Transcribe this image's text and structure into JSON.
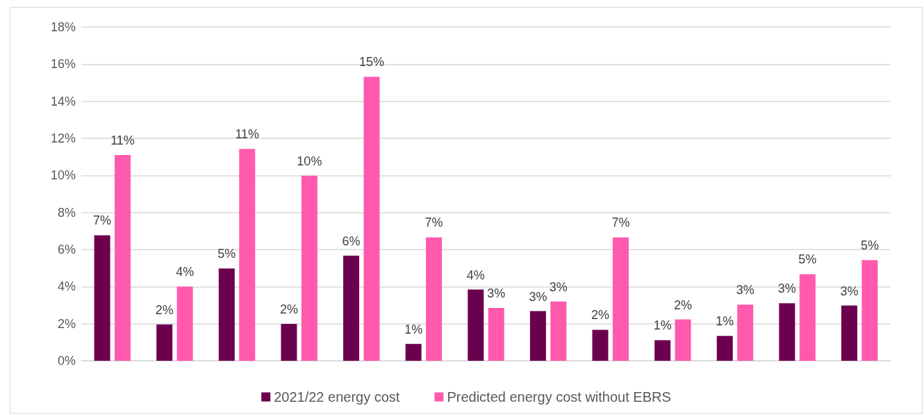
{
  "chart_data": {
    "type": "bar",
    "categories": [
      null,
      null,
      null,
      null,
      null,
      null,
      null,
      null,
      null,
      null,
      null,
      null,
      null
    ],
    "series": [
      {
        "name": "2021/22 energy cost",
        "color": "#6b004f",
        "values": [
          6.77,
          1.96,
          4.98,
          1.99,
          5.67,
          0.91,
          3.84,
          2.68,
          1.67,
          1.11,
          1.34,
          3.1,
          2.98
        ],
        "value_labels": [
          "7%",
          "2%",
          "5%",
          "2%",
          "6%",
          "1%",
          "4%",
          "3%",
          "2%",
          "1%",
          "1%",
          "3%",
          "3%"
        ]
      },
      {
        "name": "Predicted energy cost without EBRS",
        "color": "#ff5aad",
        "values": [
          11.1,
          4.0,
          11.43,
          9.98,
          15.32,
          6.66,
          2.85,
          3.2,
          6.66,
          2.23,
          3.03,
          4.67,
          5.43
        ],
        "value_labels": [
          "11%",
          "4%",
          "11%",
          "10%",
          "15%",
          "7%",
          "3%",
          "3%",
          "7%",
          "2%",
          "3%",
          "5%",
          "5%"
        ]
      }
    ],
    "ylim": [
      0,
      18
    ],
    "yticks": [
      {
        "value": 0,
        "label": "0%"
      },
      {
        "value": 2,
        "label": "2%"
      },
      {
        "value": 4,
        "label": "4%"
      },
      {
        "value": 6,
        "label": "6%"
      },
      {
        "value": 8,
        "label": "8%"
      },
      {
        "value": 10,
        "label": "10%"
      },
      {
        "value": 12,
        "label": "12%"
      },
      {
        "value": 14,
        "label": "14%"
      },
      {
        "value": 16,
        "label": "16%"
      },
      {
        "value": 18,
        "label": "18%"
      }
    ],
    "grid": "y",
    "legend": "bottom"
  }
}
